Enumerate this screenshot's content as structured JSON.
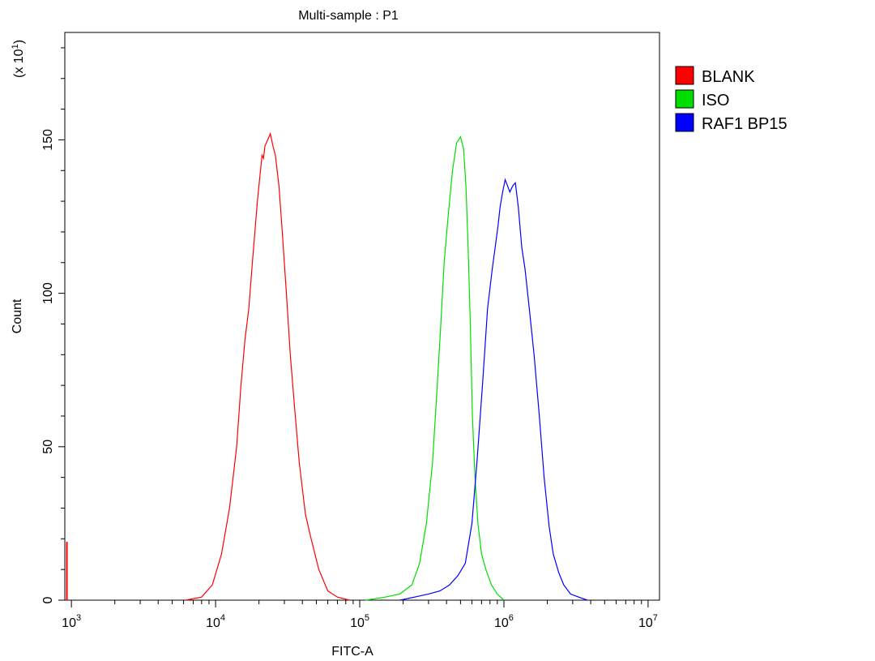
{
  "chart_data": {
    "type": "line",
    "title": "Multi-sample : P1",
    "xlabel": "FITC-A",
    "ylabel": "Count",
    "y_multiplier": "(x 10",
    "y_multiplier_exp": "1",
    "y_multiplier_close": ")",
    "x_scale": "log",
    "xlim": [
      900,
      12000000
    ],
    "ylim": [
      0,
      185
    ],
    "x_ticks": [
      {
        "value": 1000,
        "base": "10",
        "exp": "3"
      },
      {
        "value": 10000,
        "base": "10",
        "exp": "4"
      },
      {
        "value": 100000,
        "base": "10",
        "exp": "5"
      },
      {
        "value": 1000000,
        "base": "10",
        "exp": "6"
      },
      {
        "value": 10000000,
        "base": "10",
        "exp": "7"
      }
    ],
    "y_ticks": [
      {
        "value": 0,
        "label": "0"
      },
      {
        "value": 50,
        "label": "50"
      },
      {
        "value": 100,
        "label": "100"
      },
      {
        "value": 150,
        "label": "150"
      }
    ],
    "grid": false,
    "legend_position": "right",
    "series": [
      {
        "name": "BLANK",
        "color": "#ff0000",
        "points": [
          [
            6200,
            0
          ],
          [
            8000,
            1
          ],
          [
            9500,
            5
          ],
          [
            11000,
            15
          ],
          [
            12500,
            30
          ],
          [
            14000,
            50
          ],
          [
            15000,
            70
          ],
          [
            16000,
            85
          ],
          [
            17000,
            95
          ],
          [
            18000,
            110
          ],
          [
            19500,
            130
          ],
          [
            21000,
            145
          ],
          [
            21500,
            144
          ],
          [
            22000,
            148
          ],
          [
            23000,
            150
          ],
          [
            24000,
            152
          ],
          [
            25000,
            148
          ],
          [
            26000,
            145
          ],
          [
            27500,
            135
          ],
          [
            29000,
            120
          ],
          [
            31000,
            100
          ],
          [
            33000,
            80
          ],
          [
            35000,
            65
          ],
          [
            38000,
            45
          ],
          [
            42000,
            28
          ],
          [
            46000,
            20
          ],
          [
            52000,
            10
          ],
          [
            60000,
            3
          ],
          [
            70000,
            1
          ],
          [
            85000,
            0
          ]
        ],
        "spike": {
          "x": 930,
          "y": 19
        }
      },
      {
        "name": "ISO",
        "color": "#00dd00",
        "points": [
          [
            110000,
            0
          ],
          [
            150000,
            1
          ],
          [
            190000,
            2
          ],
          [
            230000,
            5
          ],
          [
            260000,
            12
          ],
          [
            290000,
            25
          ],
          [
            320000,
            45
          ],
          [
            345000,
            70
          ],
          [
            365000,
            90
          ],
          [
            385000,
            110
          ],
          [
            410000,
            125
          ],
          [
            440000,
            140
          ],
          [
            470000,
            149
          ],
          [
            500000,
            151
          ],
          [
            525000,
            147
          ],
          [
            545000,
            135
          ],
          [
            565000,
            115
          ],
          [
            585000,
            90
          ],
          [
            605000,
            60
          ],
          [
            630000,
            40
          ],
          [
            660000,
            25
          ],
          [
            700000,
            15
          ],
          [
            750000,
            10
          ],
          [
            820000,
            5
          ],
          [
            900000,
            2
          ],
          [
            1000000,
            0
          ]
        ]
      },
      {
        "name": "RAF1 BP15",
        "color": "#0000ff",
        "points": [
          [
            190000,
            0
          ],
          [
            240000,
            1
          ],
          [
            300000,
            2
          ],
          [
            360000,
            3
          ],
          [
            420000,
            5
          ],
          [
            480000,
            8
          ],
          [
            540000,
            12
          ],
          [
            600000,
            25
          ],
          [
            650000,
            45
          ],
          [
            710000,
            70
          ],
          [
            770000,
            95
          ],
          [
            830000,
            108
          ],
          [
            870000,
            115
          ],
          [
            910000,
            122
          ],
          [
            940000,
            128
          ],
          [
            980000,
            133
          ],
          [
            1020000,
            137
          ],
          [
            1060000,
            135
          ],
          [
            1100000,
            133
          ],
          [
            1150000,
            135
          ],
          [
            1200000,
            136
          ],
          [
            1260000,
            128
          ],
          [
            1330000,
            115
          ],
          [
            1400000,
            108
          ],
          [
            1500000,
            95
          ],
          [
            1620000,
            80
          ],
          [
            1760000,
            60
          ],
          [
            1900000,
            40
          ],
          [
            2060000,
            24
          ],
          [
            2200000,
            15
          ],
          [
            2400000,
            9
          ],
          [
            2600000,
            5
          ],
          [
            2900000,
            2
          ],
          [
            3300000,
            1
          ],
          [
            3800000,
            0
          ]
        ]
      }
    ]
  }
}
